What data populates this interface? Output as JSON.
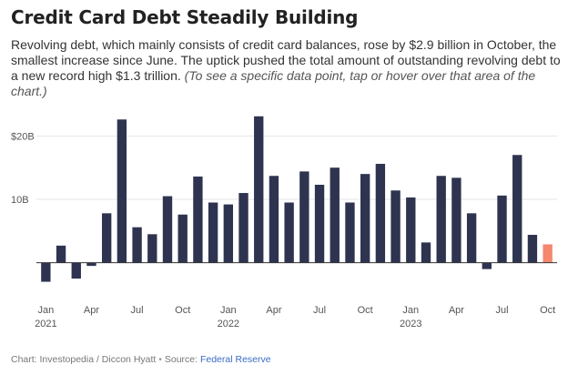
{
  "header": {
    "title": "Credit Card Debt Steadily Building",
    "subtitle_main": "Revolving debt, which mainly consists of credit card balances, rose by $2.9 billion in October, the smallest increase since June. The uptick pushed the total amount of outstanding revolving debt to a new record high $1.3 trillion.",
    "subtitle_note": "(To see a specific data point, tap or hover over that area of the chart.)"
  },
  "footer": {
    "credit": "Chart: Investopedia / Diccon Hyatt",
    "separator": "•",
    "source_label": "Source:",
    "source_link": "Federal Reserve"
  },
  "colors": {
    "bar": "#2e3450",
    "highlight": "#f4876d",
    "grid": "#e6e6e6",
    "zero": "#333333"
  },
  "chart_data": {
    "type": "bar",
    "title": "Credit Card Debt Steadily Building",
    "xlabel": "",
    "ylabel": "",
    "ylim": [
      -4.5,
      23.5
    ],
    "grid": true,
    "categories": [
      "Jan 2021",
      "Feb 2021",
      "Mar 2021",
      "Apr 2021",
      "May 2021",
      "Jun 2021",
      "Jul 2021",
      "Aug 2021",
      "Sep 2021",
      "Oct 2021",
      "Nov 2021",
      "Dec 2021",
      "Jan 2022",
      "Feb 2022",
      "Mar 2022",
      "Apr 2022",
      "May 2022",
      "Jun 2022",
      "Jul 2022",
      "Aug 2022",
      "Sep 2022",
      "Oct 2022",
      "Nov 2022",
      "Dec 2022",
      "Jan 2023",
      "Feb 2023",
      "Mar 2023",
      "Apr 2023",
      "May 2023",
      "Jun 2023",
      "Jul 2023",
      "Aug 2023",
      "Sep 2023",
      "Oct 2023"
    ],
    "values": [
      -3.0,
      2.7,
      -2.5,
      -0.5,
      7.8,
      22.6,
      5.6,
      4.5,
      10.5,
      7.6,
      13.6,
      9.5,
      9.2,
      11.0,
      23.1,
      13.7,
      9.5,
      14.4,
      12.3,
      15.0,
      9.5,
      14.0,
      15.6,
      11.4,
      10.3,
      3.2,
      13.7,
      13.4,
      7.8,
      -1.0,
      10.6,
      17.0,
      4.4,
      2.9
    ],
    "highlight_index": 33,
    "y_ticks": [
      {
        "value": 20,
        "label": "$20B"
      },
      {
        "value": 10,
        "label": "10B"
      }
    ],
    "x_ticks": [
      {
        "index": 0,
        "label": "Jan",
        "year": "2021"
      },
      {
        "index": 3,
        "label": "Apr",
        "year": ""
      },
      {
        "index": 6,
        "label": "Jul",
        "year": ""
      },
      {
        "index": 9,
        "label": "Oct",
        "year": ""
      },
      {
        "index": 12,
        "label": "Jan",
        "year": "2022"
      },
      {
        "index": 15,
        "label": "Apr",
        "year": ""
      },
      {
        "index": 18,
        "label": "Jul",
        "year": ""
      },
      {
        "index": 21,
        "label": "Oct",
        "year": ""
      },
      {
        "index": 24,
        "label": "Jan",
        "year": "2023"
      },
      {
        "index": 27,
        "label": "Apr",
        "year": ""
      },
      {
        "index": 30,
        "label": "Jul",
        "year": ""
      },
      {
        "index": 33,
        "label": "Oct",
        "year": ""
      }
    ]
  }
}
